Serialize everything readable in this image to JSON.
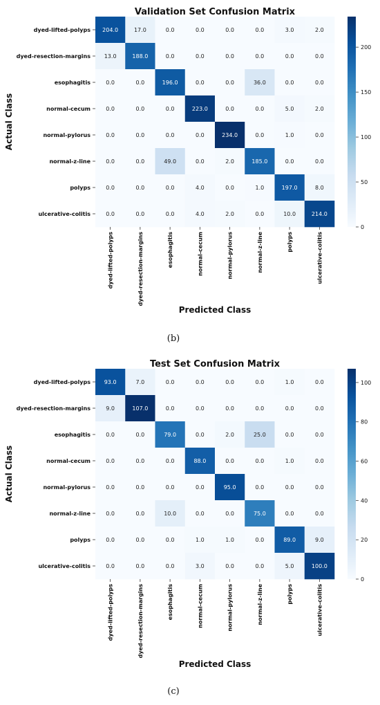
{
  "chart_data": [
    {
      "type": "heatmap",
      "title": "Validation Set Confusion Matrix",
      "xlabel": "Predicted Class",
      "ylabel": "Actual Class",
      "caption": "(b)",
      "classes": [
        "dyed-lifted-polyps",
        "dyed-resection-margins",
        "esophagitis",
        "normal-cecum",
        "normal-pylorus",
        "normal-z-line",
        "polyps",
        "ulcerative-colitis"
      ],
      "values": [
        [
          204,
          17,
          0,
          0,
          0,
          0,
          3,
          2
        ],
        [
          13,
          188,
          0,
          0,
          0,
          0,
          0,
          0
        ],
        [
          0,
          0,
          196,
          0,
          0,
          36,
          0,
          0
        ],
        [
          0,
          0,
          0,
          223,
          0,
          0,
          5,
          2
        ],
        [
          0,
          0,
          0,
          0,
          234,
          0,
          1,
          0
        ],
        [
          0,
          0,
          49,
          0,
          2,
          185,
          0,
          0
        ],
        [
          0,
          0,
          0,
          4,
          0,
          1,
          197,
          8
        ],
        [
          0,
          0,
          0,
          4,
          2,
          0,
          10,
          214
        ]
      ],
      "colorbar": {
        "min": 0,
        "max": 234,
        "ticks": [
          0,
          50,
          100,
          150,
          200
        ]
      }
    },
    {
      "type": "heatmap",
      "title": "Test Set Confusion Matrix",
      "xlabel": "Predicted Class",
      "ylabel": "Actual Class",
      "caption": "(c)",
      "classes": [
        "dyed-lifted-polyps",
        "dyed-resection-margins",
        "esophagitis",
        "normal-cecum",
        "normal-pylorus",
        "normal-z-line",
        "polyps",
        "ulcerative-colitis"
      ],
      "values": [
        [
          93,
          7,
          0,
          0,
          0,
          0,
          1,
          0
        ],
        [
          9,
          107,
          0,
          0,
          0,
          0,
          0,
          0
        ],
        [
          0,
          0,
          79,
          0,
          2,
          25,
          0,
          0
        ],
        [
          0,
          0,
          0,
          88,
          0,
          0,
          1,
          0
        ],
        [
          0,
          0,
          0,
          0,
          95,
          0,
          0,
          0
        ],
        [
          0,
          0,
          10,
          0,
          0,
          75,
          0,
          0
        ],
        [
          0,
          0,
          0,
          1,
          1,
          0,
          89,
          9
        ],
        [
          0,
          0,
          0,
          3,
          0,
          0,
          5,
          100
        ]
      ],
      "colorbar": {
        "min": 0,
        "max": 107,
        "ticks": [
          0,
          20,
          40,
          60,
          80,
          100
        ]
      }
    }
  ],
  "colors": {
    "scale": [
      "#f7fbff",
      "#deebf7",
      "#c6dbef",
      "#9ecae1",
      "#6baed6",
      "#4292c6",
      "#2171b5",
      "#08519c",
      "#08306b"
    ]
  }
}
